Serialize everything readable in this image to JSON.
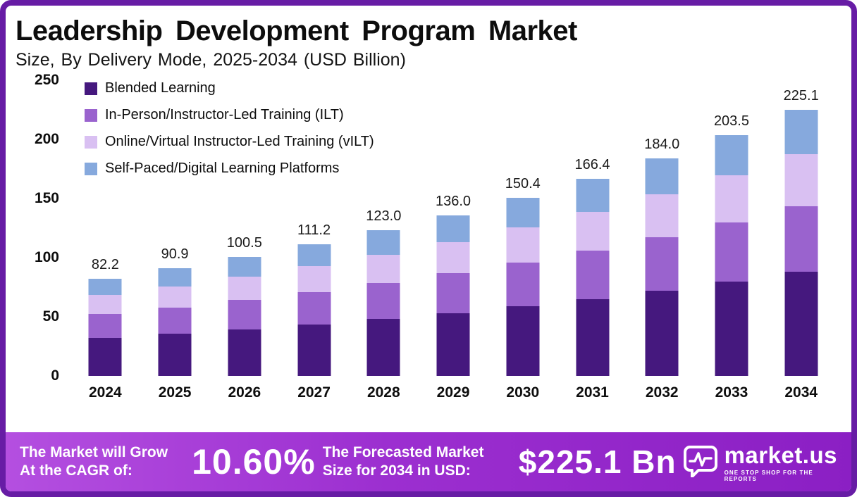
{
  "header": {
    "title": "Leadership Development Program Market",
    "subtitle": "Size, By Delivery Mode, 2025-2034 (USD Billion)"
  },
  "chart_data": {
    "type": "bar",
    "stacked": true,
    "title": "Leadership Development Program Market Size, By Delivery Mode, 2025-2034 (USD Billion)",
    "categories": [
      "2024",
      "2025",
      "2026",
      "2027",
      "2028",
      "2029",
      "2030",
      "2031",
      "2032",
      "2033",
      "2034"
    ],
    "totals_labels": [
      "82.2",
      "90.9",
      "100.5",
      "111.2",
      "123.0",
      "136.0",
      "150.4",
      "166.4",
      "184.0",
      "203.5",
      "225.1"
    ],
    "series": [
      {
        "name": "Blended Learning",
        "color": "#45187e",
        "values": [
          32.0,
          35.5,
          39.3,
          43.5,
          48.1,
          53.2,
          58.8,
          65.1,
          72.0,
          79.6,
          88.1
        ]
      },
      {
        "name": "In-Person/Instructor-Led Training (ILT)",
        "color": "#9a63ce",
        "values": [
          20.5,
          22.5,
          24.9,
          27.5,
          30.4,
          33.6,
          37.2,
          41.1,
          45.5,
          50.3,
          55.6
        ]
      },
      {
        "name": "Online/Virtual Instructor-Led Training (vILT)",
        "color": "#d9c0f2",
        "values": [
          16.0,
          17.7,
          19.6,
          21.7,
          24.0,
          26.6,
          29.4,
          32.5,
          36.0,
          39.8,
          44.0
        ]
      },
      {
        "name": "Self-Paced/Digital Learning Platforms",
        "color": "#86a9dd",
        "values": [
          13.7,
          15.2,
          16.7,
          18.5,
          20.5,
          22.6,
          25.0,
          27.7,
          30.5,
          33.8,
          37.4
        ]
      }
    ],
    "ylim": [
      0,
      250
    ],
    "yticks": [
      "0",
      "50",
      "100",
      "150",
      "200",
      "250"
    ],
    "grid": false,
    "legend_position": "top-left"
  },
  "footer": {
    "cagr_label": "The Market will Grow At the CAGR of:",
    "cagr_value": "10.60%",
    "forecast_label": "The Forecasted Market Size for 2034 in USD:",
    "forecast_value": "$225.1 Bn",
    "brand_name": "market.us",
    "brand_tagline": "ONE STOP SHOP FOR THE REPORTS"
  }
}
